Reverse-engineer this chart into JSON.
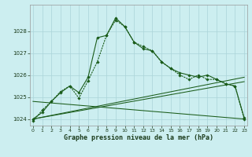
{
  "xlabel": "Graphe pression niveau de la mer (hPa)",
  "background_color": "#cceef0",
  "grid_color": "#aad4d8",
  "line_color": "#1a5c1a",
  "hours": [
    0,
    1,
    2,
    3,
    4,
    5,
    6,
    7,
    8,
    9,
    10,
    11,
    12,
    13,
    14,
    15,
    16,
    17,
    18,
    19,
    20,
    21,
    22,
    23
  ],
  "series1": [
    1024.0,
    1024.3,
    1024.8,
    1025.2,
    1025.5,
    1025.2,
    1025.9,
    1027.7,
    1027.8,
    1028.6,
    1028.2,
    1027.5,
    1027.2,
    1027.1,
    1026.6,
    1026.3,
    1026.1,
    1026.0,
    1025.9,
    1026.0,
    1025.8,
    1025.6,
    1025.5,
    1024.05
  ],
  "series2": [
    1023.9,
    1024.4,
    1024.8,
    1025.25,
    1025.5,
    1024.95,
    1025.75,
    1026.6,
    1027.8,
    1028.5,
    1028.2,
    1027.5,
    1027.3,
    1027.1,
    1026.6,
    1026.3,
    1026.0,
    1025.8,
    1026.0,
    1025.8,
    1025.8,
    1025.6,
    1025.5,
    1024.0
  ],
  "trend_lines": [
    [
      0,
      1024.0,
      23,
      1025.9
    ],
    [
      0,
      1024.0,
      23,
      1025.7
    ],
    [
      0,
      1024.8,
      23,
      1024.0
    ]
  ],
  "ylim": [
    1023.7,
    1029.2
  ],
  "yticks": [
    1024,
    1025,
    1026,
    1027,
    1028
  ],
  "xlim": [
    -0.3,
    23.3
  ],
  "xticks": [
    0,
    1,
    2,
    3,
    4,
    5,
    6,
    7,
    8,
    9,
    10,
    11,
    12,
    13,
    14,
    15,
    16,
    17,
    18,
    19,
    20,
    21,
    22,
    23
  ]
}
